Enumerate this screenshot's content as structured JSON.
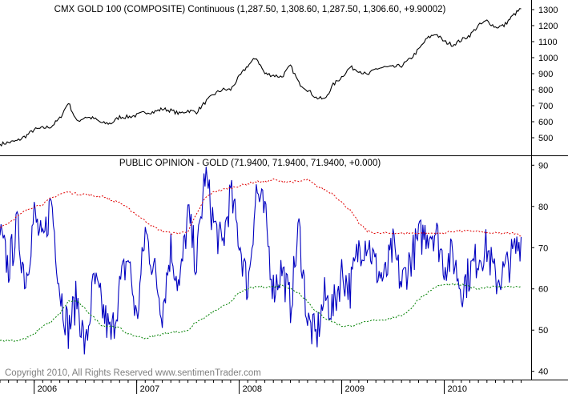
{
  "chart_data": [
    {
      "type": "line",
      "title": "CMX GOLD 100 (COMPOSITE) Continuous (1,287.50, 1,308.60, 1,287.50, 1,306.60, +9.90002)",
      "ylim": [
        400,
        1350
      ],
      "yticks": [
        500,
        600,
        700,
        800,
        900,
        1000,
        1100,
        1200,
        1300
      ],
      "colors": {
        "price": "#000000"
      },
      "series": [
        {
          "key": "price",
          "x": [
            "2005-09",
            "2005-10",
            "2005-11",
            "2005-12",
            "2006-01",
            "2006-02",
            "2006-03",
            "2006-04",
            "2006-05",
            "2006-06",
            "2006-07",
            "2006-08",
            "2006-09",
            "2006-10",
            "2006-11",
            "2006-12",
            "2007-01",
            "2007-02",
            "2007-03",
            "2007-04",
            "2007-05",
            "2007-06",
            "2007-07",
            "2007-08",
            "2007-09",
            "2007-10",
            "2007-11",
            "2007-12",
            "2008-01",
            "2008-02",
            "2008-03",
            "2008-04",
            "2008-05",
            "2008-06",
            "2008-07",
            "2008-08",
            "2008-09",
            "2008-10",
            "2008-11",
            "2008-12",
            "2009-01",
            "2009-02",
            "2009-03",
            "2009-04",
            "2009-05",
            "2009-06",
            "2009-07",
            "2009-08",
            "2009-09",
            "2009-10",
            "2009-11",
            "2009-12",
            "2010-01",
            "2010-02",
            "2010-03",
            "2010-04",
            "2010-05",
            "2010-06",
            "2010-07",
            "2010-08",
            "2010-09",
            "2010-10"
          ],
          "values": [
            460,
            470,
            480,
            510,
            550,
            560,
            570,
            620,
            720,
            600,
            630,
            620,
            590,
            590,
            630,
            630,
            640,
            660,
            660,
            680,
            670,
            650,
            670,
            660,
            720,
            770,
            800,
            800,
            880,
            950,
            1000,
            900,
            890,
            880,
            950,
            840,
            800,
            750,
            740,
            830,
            880,
            940,
            920,
            890,
            930,
            940,
            940,
            950,
            990,
            1050,
            1120,
            1150,
            1100,
            1080,
            1110,
            1140,
            1200,
            1230,
            1190,
            1200,
            1260,
            1306.6
          ]
        }
      ]
    },
    {
      "type": "line",
      "title": "PUBLIC OPINION - GOLD (71.9400, 71.9400, 71.9400, +0.000)",
      "ylim": [
        38,
        92
      ],
      "yticks": [
        40,
        50,
        60,
        70,
        80,
        90
      ],
      "colors": {
        "opinion": "#0000c0",
        "upper_band": "#e00000",
        "lower_band": "#008000"
      },
      "series": [
        {
          "key": "opinion",
          "x": [
            "2005-09",
            "2005-10",
            "2005-11",
            "2005-12",
            "2006-01",
            "2006-02",
            "2006-03",
            "2006-04",
            "2006-05",
            "2006-06",
            "2006-07",
            "2006-08",
            "2006-09",
            "2006-10",
            "2006-11",
            "2006-12",
            "2007-01",
            "2007-02",
            "2007-03",
            "2007-04",
            "2007-05",
            "2007-06",
            "2007-07",
            "2007-08",
            "2007-09",
            "2007-10",
            "2007-11",
            "2007-12",
            "2008-01",
            "2008-02",
            "2008-03",
            "2008-04",
            "2008-05",
            "2008-06",
            "2008-07",
            "2008-08",
            "2008-09",
            "2008-10",
            "2008-11",
            "2008-12",
            "2009-01",
            "2009-02",
            "2009-03",
            "2009-04",
            "2009-05",
            "2009-06",
            "2009-07",
            "2009-08",
            "2009-09",
            "2009-10",
            "2009-11",
            "2009-12",
            "2010-01",
            "2010-02",
            "2010-03",
            "2010-04",
            "2010-05",
            "2010-06",
            "2010-07",
            "2010-08",
            "2010-09",
            "2010-10"
          ],
          "values": [
            73,
            65,
            75,
            62,
            78,
            70,
            82,
            60,
            50,
            58,
            45,
            62,
            55,
            48,
            60,
            68,
            52,
            74,
            65,
            55,
            70,
            60,
            78,
            66,
            88,
            76,
            70,
            83,
            72,
            60,
            84,
            78,
            60,
            65,
            56,
            75,
            52,
            48,
            58,
            55,
            64,
            60,
            70,
            72,
            65,
            62,
            70,
            61,
            67,
            72,
            74,
            74,
            66,
            68,
            60,
            64,
            68,
            70,
            62,
            64,
            68,
            72
          ]
        },
        {
          "key": "upper_band",
          "x": [
            "2005-09",
            "2005-10",
            "2005-11",
            "2005-12",
            "2006-01",
            "2006-02",
            "2006-03",
            "2006-04",
            "2006-05",
            "2006-06",
            "2006-07",
            "2006-08",
            "2006-09",
            "2006-10",
            "2006-11",
            "2006-12",
            "2007-01",
            "2007-02",
            "2007-03",
            "2007-04",
            "2007-05",
            "2007-06",
            "2007-07",
            "2007-08",
            "2007-09",
            "2007-10",
            "2007-11",
            "2007-12",
            "2008-01",
            "2008-02",
            "2008-03",
            "2008-04",
            "2008-05",
            "2008-06",
            "2008-07",
            "2008-08",
            "2008-09",
            "2008-10",
            "2008-11",
            "2008-12",
            "2009-01",
            "2009-02",
            "2009-03",
            "2009-04",
            "2009-05",
            "2009-06",
            "2009-07",
            "2009-08",
            "2009-09",
            "2009-10",
            "2009-11",
            "2009-12",
            "2010-01",
            "2010-02",
            "2010-03",
            "2010-04",
            "2010-05",
            "2010-06",
            "2010-07",
            "2010-08",
            "2010-09",
            "2010-10"
          ],
          "values": [
            75,
            76,
            77.5,
            79,
            80,
            80.5,
            82,
            83,
            83.5,
            83,
            83,
            82.5,
            82.5,
            81.5,
            81,
            79.5,
            78,
            76.5,
            75,
            74,
            73.5,
            73.5,
            74,
            78,
            82,
            83.5,
            84,
            84.5,
            85,
            85.5,
            86,
            86,
            86.5,
            86,
            86,
            86,
            86.5,
            85,
            84,
            83,
            81,
            79,
            76,
            74,
            73.5,
            73.5,
            73.5,
            73.5,
            73.5,
            73.5,
            73.5,
            73.5,
            73.5,
            74,
            74,
            74,
            74,
            73.5,
            73.5,
            73.5,
            73.5,
            73
          ]
        },
        {
          "key": "lower_band",
          "x": [
            "2005-09",
            "2005-10",
            "2005-11",
            "2005-12",
            "2006-01",
            "2006-02",
            "2006-03",
            "2006-04",
            "2006-05",
            "2006-06",
            "2006-07",
            "2006-08",
            "2006-09",
            "2006-10",
            "2006-11",
            "2006-12",
            "2007-01",
            "2007-02",
            "2007-03",
            "2007-04",
            "2007-05",
            "2007-06",
            "2007-07",
            "2007-08",
            "2007-09",
            "2007-10",
            "2007-11",
            "2007-12",
            "2008-01",
            "2008-02",
            "2008-03",
            "2008-04",
            "2008-05",
            "2008-06",
            "2008-07",
            "2008-08",
            "2008-09",
            "2008-10",
            "2008-11",
            "2008-12",
            "2009-01",
            "2009-02",
            "2009-03",
            "2009-04",
            "2009-05",
            "2009-06",
            "2009-07",
            "2009-08",
            "2009-09",
            "2009-10",
            "2009-11",
            "2009-12",
            "2010-01",
            "2010-02",
            "2010-03",
            "2010-04",
            "2010-05",
            "2010-06",
            "2010-07",
            "2010-08",
            "2010-09",
            "2010-10"
          ],
          "values": [
            47.5,
            47.5,
            47.5,
            48,
            49,
            51,
            52,
            54,
            57,
            57,
            55,
            53,
            51,
            51,
            50.5,
            49,
            48.5,
            48,
            48.5,
            49,
            49.5,
            49.5,
            50,
            52,
            53,
            54.5,
            55.5,
            57,
            59,
            60,
            60.5,
            60.5,
            60.5,
            61,
            60,
            59,
            57,
            54.5,
            53,
            52,
            51,
            51,
            51.5,
            52,
            52.5,
            52.5,
            53,
            53.5,
            55,
            57.5,
            59,
            60.5,
            61,
            61,
            61,
            60.5,
            60,
            60.5,
            60.5,
            60.5,
            60.5,
            60.5
          ]
        }
      ]
    }
  ],
  "x_axis": {
    "tick_labels": [
      "2006",
      "2007",
      "2008",
      "2009",
      "2010"
    ]
  },
  "copyright": "Copyright 2010, All Rights Reserved  www.sentimenTrader.com"
}
